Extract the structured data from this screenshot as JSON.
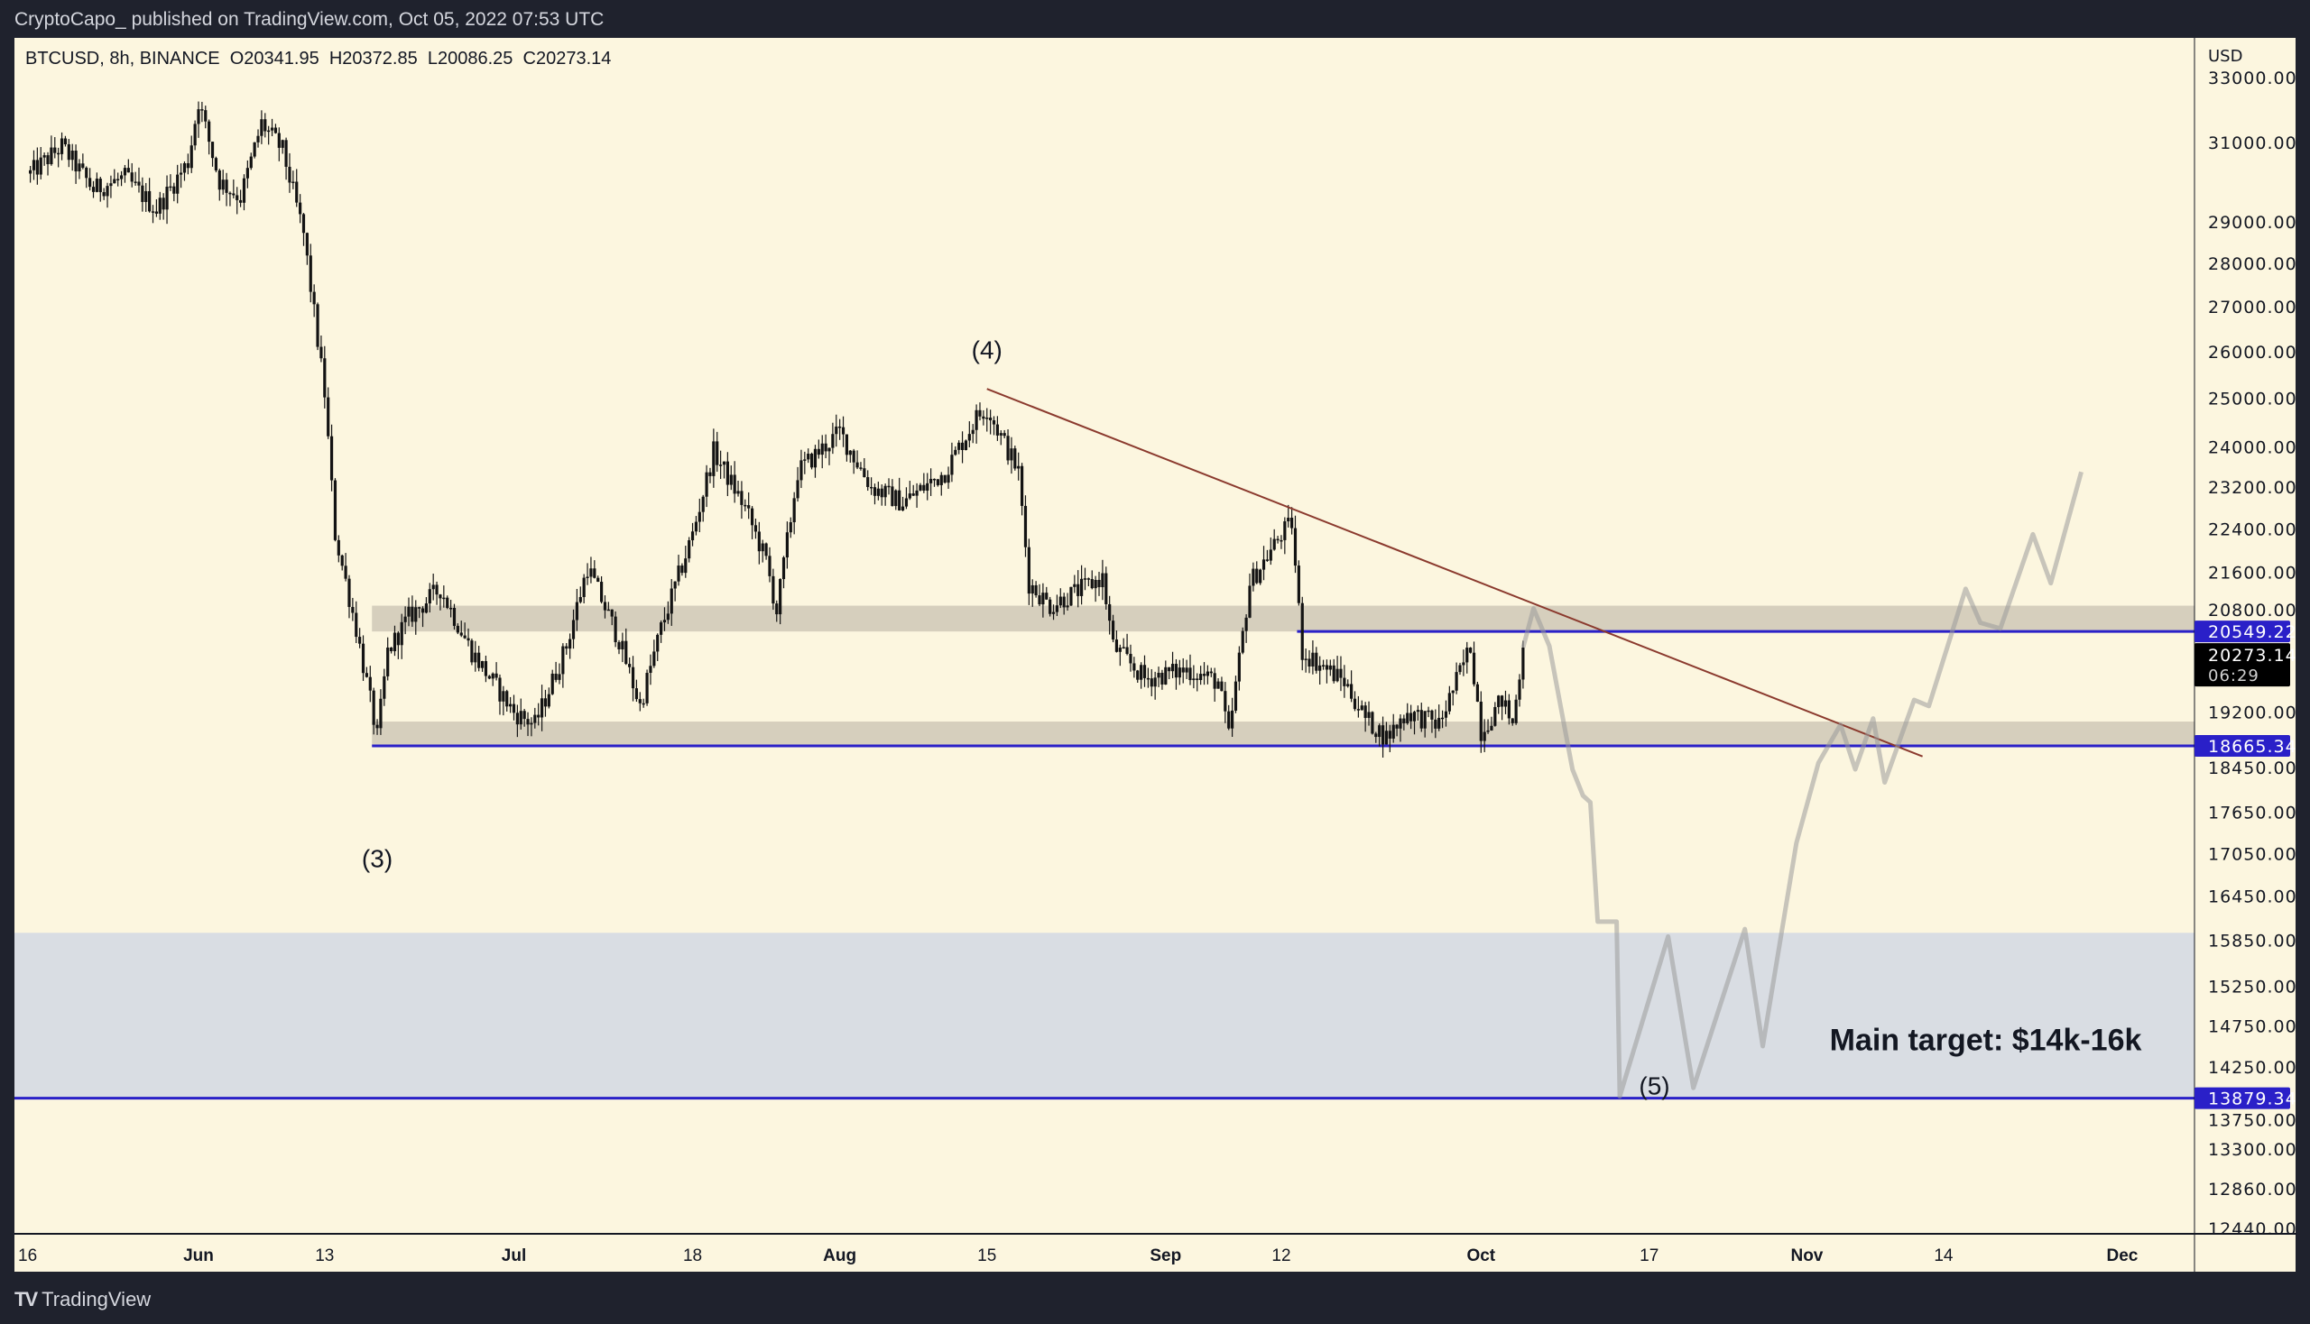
{
  "header": {
    "publisher_line": "CryptoCapo_ published on TradingView.com, Oct 05, 2022 07:53 UTC"
  },
  "legend": {
    "symbol": "BTCUSD, 8h, BINANCE",
    "open": "O20341.95",
    "high": "H20372.85",
    "low": "L20086.25",
    "close": "C20273.14"
  },
  "footer": {
    "brand": "TradingView",
    "logo_icon": "tradingview-logo-icon"
  },
  "colors": {
    "background": "#1f222d",
    "chart_bg": "#fcf6df",
    "zone": "#d6cfbd",
    "target_zone": "#d9dde3",
    "level_line": "#2a20c8",
    "trendline": "#8b3a2e",
    "projection": "#9a9a9a",
    "candle": "#131313"
  },
  "chart_data": {
    "type": "candlestick",
    "title": "BTCUSD, 8h, BINANCE",
    "x_unit": "days since 2022-05-16",
    "currency_label": "USD",
    "y_scale": "log",
    "ylim": [
      12300,
      34000
    ],
    "xlim": [
      -1.5,
      206
    ],
    "price_ticks": [
      "33000.00",
      "31000.00",
      "29000.00",
      "28000.00",
      "27000.00",
      "26000.00",
      "25000.00",
      "24000.00",
      "23200.00",
      "22400.00",
      "21600.00",
      "20800.00",
      "19200.00",
      "18450.00",
      "17650.00",
      "17050.00",
      "16450.00",
      "15850.00",
      "15250.00",
      "14750.00",
      "14250.00",
      "13750.00",
      "13300.00",
      "12860.00",
      "12440.00"
    ],
    "time_ticks": [
      {
        "t": 0,
        "label": "16",
        "bold": false
      },
      {
        "t": 16,
        "label": "Jun",
        "bold": true
      },
      {
        "t": 28,
        "label": "13",
        "bold": false
      },
      {
        "t": 46,
        "label": "Jul",
        "bold": true
      },
      {
        "t": 63,
        "label": "18",
        "bold": false
      },
      {
        "t": 77,
        "label": "Aug",
        "bold": true
      },
      {
        "t": 91,
        "label": "15",
        "bold": false
      },
      {
        "t": 108,
        "label": "Sep",
        "bold": true
      },
      {
        "t": 119,
        "label": "12",
        "bold": false
      },
      {
        "t": 138,
        "label": "Oct",
        "bold": true
      },
      {
        "t": 154,
        "label": "17",
        "bold": false
      },
      {
        "t": 169,
        "label": "Nov",
        "bold": true
      },
      {
        "t": 182,
        "label": "14",
        "bold": false
      },
      {
        "t": 199,
        "label": "Dec",
        "bold": true
      }
    ],
    "candles_per_day": 3,
    "price_path": [
      [
        0,
        30200
      ],
      [
        3,
        30900
      ],
      [
        6,
        29800
      ],
      [
        9,
        30100
      ],
      [
        12,
        29300
      ],
      [
        15,
        30500
      ],
      [
        16,
        32100
      ],
      [
        18,
        30000
      ],
      [
        20,
        29600
      ],
      [
        22,
        31500
      ],
      [
        24,
        30800
      ],
      [
        26,
        28700
      ],
      [
        28,
        25100
      ],
      [
        29,
        22300
      ],
      [
        31,
        20600
      ],
      [
        33,
        18800
      ],
      [
        34,
        20200
      ],
      [
        36,
        20800
      ],
      [
        39,
        21300
      ],
      [
        42,
        20200
      ],
      [
        46,
        19200
      ],
      [
        48,
        19000
      ],
      [
        51,
        20300
      ],
      [
        53,
        21700
      ],
      [
        56,
        20400
      ],
      [
        58,
        19300
      ],
      [
        60,
        20600
      ],
      [
        63,
        22300
      ],
      [
        65,
        23900
      ],
      [
        68,
        22800
      ],
      [
        70,
        21800
      ],
      [
        71,
        20900
      ],
      [
        73,
        23500
      ],
      [
        75,
        23900
      ],
      [
        77,
        24300
      ],
      [
        80,
        23200
      ],
      [
        83,
        22900
      ],
      [
        87,
        23500
      ],
      [
        90,
        24600
      ],
      [
        91,
        24800
      ],
      [
        94,
        23500
      ],
      [
        95,
        21400
      ],
      [
        97,
        21000
      ],
      [
        102,
        21500
      ],
      [
        103,
        20300
      ],
      [
        106,
        19750
      ],
      [
        110,
        19900
      ],
      [
        113,
        19700
      ],
      [
        114,
        18800
      ],
      [
        116,
        21400
      ],
      [
        119,
        22300
      ],
      [
        120,
        22500
      ],
      [
        121,
        20200
      ],
      [
        125,
        19700
      ],
      [
        127,
        19100
      ],
      [
        129,
        18800
      ],
      [
        131,
        19200
      ],
      [
        134,
        19000
      ],
      [
        137,
        20300
      ],
      [
        138,
        18900
      ],
      [
        140,
        19400
      ],
      [
        141,
        19000
      ],
      [
        142,
        20273.14
      ]
    ],
    "last_price": {
      "value": "20273.14",
      "countdown": "06:29"
    },
    "levels": [
      {
        "price": 20549.22,
        "label": "20549.22",
        "from_t": 120.5
      },
      {
        "price": 18665.34,
        "label": "18665.34",
        "from_t": 32.5
      },
      {
        "price": 13879.34,
        "label": "13879.34",
        "from_t": -2
      }
    ],
    "zones": [
      {
        "name": "resistance-zone",
        "from_t": 32.5,
        "low": 20549.22,
        "high": 21000
      },
      {
        "name": "support-zone",
        "from_t": 32.5,
        "low": 18665.34,
        "high": 19050
      },
      {
        "name": "target-zone",
        "from_t": -2,
        "low": 13879.34,
        "high": 15950
      }
    ],
    "trendline": [
      [
        91,
        25200
      ],
      [
        180,
        18500
      ]
    ],
    "projection": [
      [
        142,
        20273
      ],
      [
        143,
        20950
      ],
      [
        144.5,
        20300
      ],
      [
        145.9,
        19000
      ],
      [
        146.7,
        18300
      ],
      [
        147.7,
        17900
      ],
      [
        148.4,
        17800
      ],
      [
        149.1,
        16100
      ],
      [
        150.9,
        16100
      ],
      [
        151.2,
        13900
      ],
      [
        155.8,
        15900
      ],
      [
        158.2,
        14000
      ],
      [
        163.1,
        16000
      ],
      [
        164.8,
        14500
      ],
      [
        168,
        17200
      ],
      [
        170.1,
        18400
      ],
      [
        172.2,
        19000
      ],
      [
        173.6,
        18300
      ],
      [
        175.3,
        19100
      ],
      [
        176.4,
        18100
      ],
      [
        179.2,
        19400
      ],
      [
        180.6,
        19300
      ],
      [
        184.1,
        21300
      ],
      [
        185.5,
        20700
      ],
      [
        187.4,
        20600
      ],
      [
        190.5,
        22300
      ],
      [
        192.2,
        21400
      ],
      [
        195.1,
        23500
      ]
    ],
    "annotations": [
      {
        "text": "(4)",
        "t": 91,
        "price": 26000,
        "size": "normal"
      },
      {
        "text": "(3)",
        "t": 33,
        "price": 16950,
        "size": "normal"
      },
      {
        "text": "(5)",
        "t": 154.5,
        "price": 14000,
        "size": "normal"
      },
      {
        "text": "Main target: $14k-16k",
        "t": 186,
        "price": 14550,
        "size": "large"
      }
    ]
  }
}
